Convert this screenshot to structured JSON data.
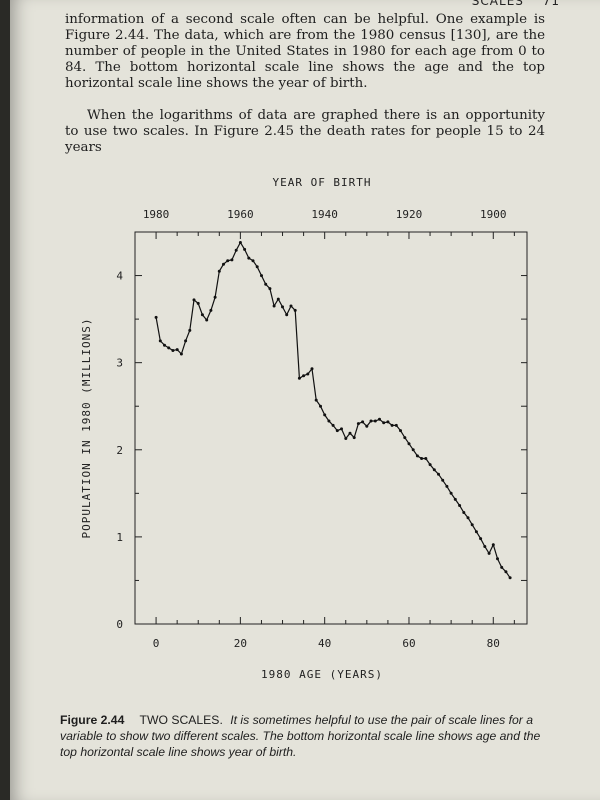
{
  "running_head": {
    "title": "SCALES",
    "page_number": "71"
  },
  "paragraphs": [
    "information of a second scale often can be helpful. One example is Figure 2.44. The data, which are from the 1980 census [130], are the number of people in the United States in 1980 for each age from 0 to 84. The bottom horizontal scale line shows the age and the top horizontal scale line shows the year of birth.",
    "When the logarithms of data are graphed there is an opportunity to use two scales. In Figure 2.45 the death rates for people 15 to 24 years"
  ],
  "chart_data": {
    "type": "line",
    "title": "YEAR OF BIRTH",
    "xlabel": "1980 AGE (YEARS)",
    "ylabel": "POPULATION IN 1980 (MILLIONS)",
    "xlim": [
      -5,
      88
    ],
    "ylim": [
      0,
      4.5
    ],
    "x_ticks": [
      0,
      20,
      40,
      60,
      80
    ],
    "y_ticks": [
      0,
      1,
      2,
      3,
      4
    ],
    "top_axis_ticks": [
      1980,
      1960,
      1940,
      1920,
      1900
    ],
    "grid": false,
    "x": [
      0,
      1,
      2,
      3,
      4,
      5,
      6,
      7,
      8,
      9,
      10,
      11,
      12,
      13,
      14,
      15,
      16,
      17,
      18,
      19,
      20,
      21,
      22,
      23,
      24,
      25,
      26,
      27,
      28,
      29,
      30,
      31,
      32,
      33,
      34,
      35,
      36,
      37,
      38,
      39,
      40,
      41,
      42,
      43,
      44,
      45,
      46,
      47,
      48,
      49,
      50,
      51,
      52,
      53,
      54,
      55,
      56,
      57,
      58,
      59,
      60,
      61,
      62,
      63,
      64,
      65,
      66,
      67,
      68,
      69,
      70,
      71,
      72,
      73,
      74,
      75,
      76,
      77,
      78,
      79,
      80,
      81,
      82,
      83,
      84
    ],
    "values": [
      3.52,
      3.25,
      3.2,
      3.17,
      3.14,
      3.15,
      3.1,
      3.25,
      3.37,
      3.72,
      3.68,
      3.55,
      3.49,
      3.6,
      3.75,
      4.05,
      4.13,
      4.17,
      4.18,
      4.29,
      4.38,
      4.3,
      4.2,
      4.17,
      4.1,
      4.0,
      3.9,
      3.85,
      3.65,
      3.73,
      3.64,
      3.55,
      3.65,
      3.6,
      2.82,
      2.85,
      2.87,
      2.93,
      2.57,
      2.5,
      2.4,
      2.33,
      2.28,
      2.22,
      2.24,
      2.13,
      2.19,
      2.14,
      2.3,
      2.32,
      2.27,
      2.33,
      2.33,
      2.35,
      2.31,
      2.32,
      2.28,
      2.28,
      2.22,
      2.14,
      2.07,
      2.0,
      1.93,
      1.9,
      1.9,
      1.83,
      1.77,
      1.72,
      1.65,
      1.58,
      1.5,
      1.43,
      1.36,
      1.28,
      1.22,
      1.14,
      1.06,
      0.98,
      0.89,
      0.81,
      0.91,
      0.75,
      0.65,
      0.6,
      0.53
    ]
  },
  "caption": {
    "label": "Figure 2.44",
    "title": "TWO SCALES.",
    "body": "It is sometimes helpful to use the pair of scale lines for a variable to show two different scales. The bottom horizontal scale line shows age and the top horizontal scale line shows year of birth."
  }
}
